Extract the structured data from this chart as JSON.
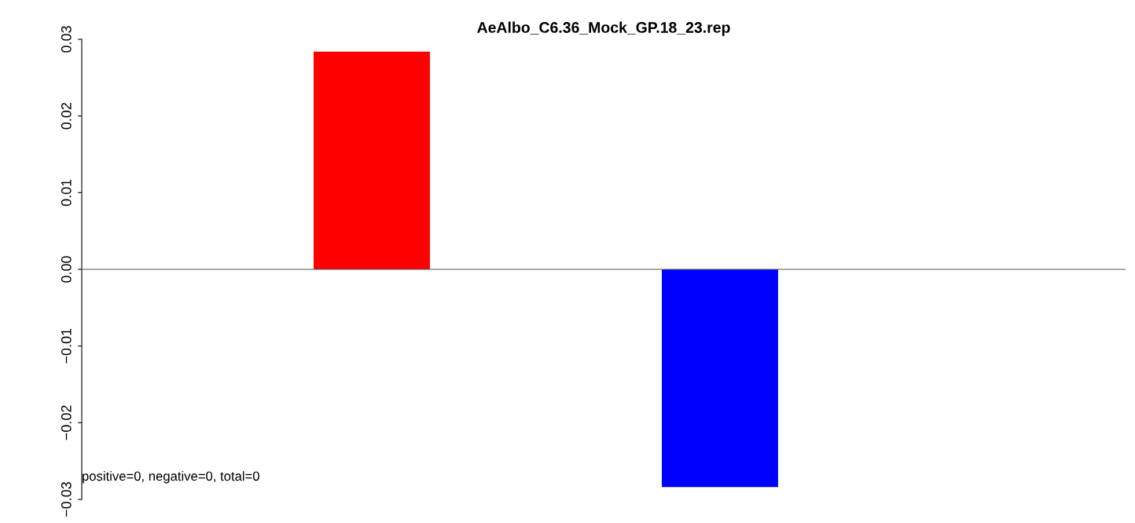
{
  "chart_data": {
    "type": "bar",
    "title": "AeAlbo_C6.36_Mock_GP.18_23.rep",
    "categories": [
      null,
      null
    ],
    "values": [
      0.0284,
      -0.0284
    ],
    "colors": [
      "#ff0000",
      "#0000ff"
    ],
    "ylim": [
      -0.03,
      0.03
    ],
    "yticks": [
      {
        "value": -0.03,
        "label": "−0.03"
      },
      {
        "value": -0.02,
        "label": "−0.02"
      },
      {
        "value": -0.01,
        "label": "−0.01"
      },
      {
        "value": 0,
        "label": "0.00"
      },
      {
        "value": 0.01,
        "label": "0.01"
      },
      {
        "value": 0.02,
        "label": "0.02"
      },
      {
        "value": 0.03,
        "label": "0.03"
      }
    ],
    "ref_lines": [
      {
        "axis": "y",
        "value": 0,
        "color": "#555555"
      }
    ],
    "annotations": [
      "positive=0, negative=0, total=0"
    ],
    "tick_labels": "y",
    "grid": false,
    "legend": false
  }
}
